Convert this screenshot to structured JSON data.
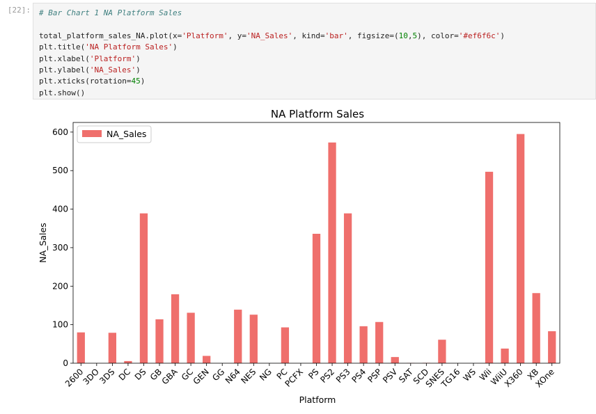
{
  "cell": {
    "prompt": "[22]:",
    "code": {
      "comment": "# Bar Chart 1 NA Platform Sales",
      "line2": {
        "a": "total_platform_sales_NA.plot(x=",
        "s1": "'Platform'",
        "b": ", y=",
        "s2": "'NA_Sales'",
        "c": ", kind=",
        "s3": "'bar'",
        "d": ", figsize=(",
        "n1": "10",
        "e": ",",
        "n2": "5",
        "f": "), color=",
        "s4": "'#ef6f6c'",
        "g": ")"
      },
      "line3": {
        "a": "plt.title(",
        "s": "'NA Platform Sales'",
        "b": ")"
      },
      "line4": {
        "a": "plt.xlabel(",
        "s": "'Platform'",
        "b": ")"
      },
      "line5": {
        "a": "plt.ylabel(",
        "s": "'NA_Sales'",
        "b": ")"
      },
      "line6": {
        "a": "plt.xticks(rotation=",
        "n": "45",
        "b": ")"
      },
      "line7": "plt.show()"
    }
  },
  "chart_data": {
    "type": "bar",
    "title": "NA Platform Sales",
    "xlabel": "Platform",
    "ylabel": "NA_Sales",
    "color": "#ef6f6c",
    "legend": {
      "label": "NA_Sales",
      "position": "top-left"
    },
    "grid": false,
    "ylim": [
      0,
      625
    ],
    "yticks": [
      0,
      100,
      200,
      300,
      400,
      500,
      600
    ],
    "xtick_rotation": 45,
    "categories": [
      "2600",
      "3DO",
      "3DS",
      "DC",
      "DS",
      "GB",
      "GBA",
      "GC",
      "GEN",
      "GG",
      "N64",
      "NES",
      "NG",
      "PC",
      "PCFX",
      "PS",
      "PS2",
      "PS3",
      "PS4",
      "PSP",
      "PSV",
      "SAT",
      "SCD",
      "SNES",
      "TG16",
      "WS",
      "Wii",
      "WiiU",
      "X360",
      "XB",
      "XOne"
    ],
    "values": [
      80,
      0.1,
      79,
      5.6,
      389,
      114,
      179,
      131,
      19,
      0,
      139,
      126,
      0,
      93,
      0,
      336,
      573,
      389,
      96,
      107,
      16,
      0.7,
      1,
      61,
      0,
      0,
      497,
      38,
      595,
      182,
      83
    ]
  }
}
